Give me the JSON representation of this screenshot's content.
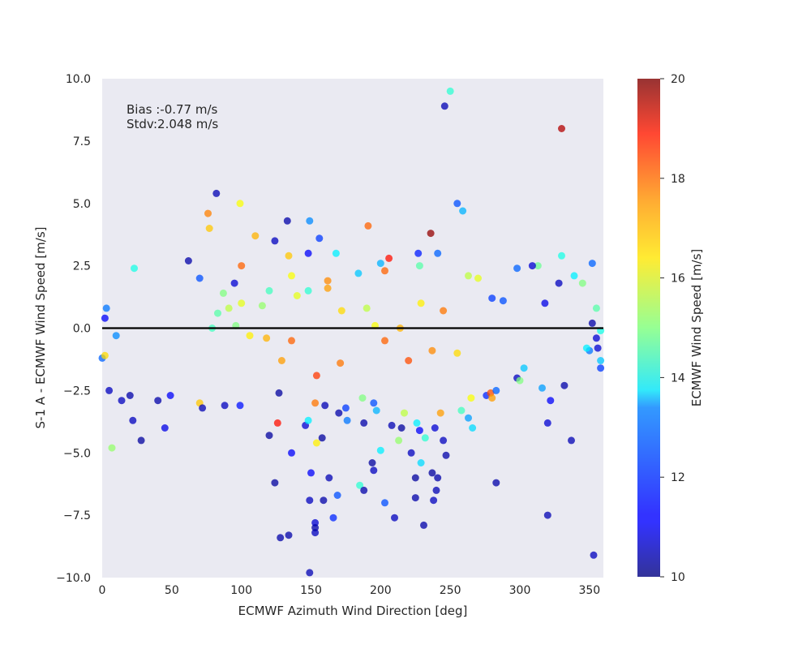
{
  "chart_data": {
    "type": "scatter",
    "xlabel": "ECMWF Azimuth Wind Direction [deg]",
    "ylabel": "S-1 A - ECMWF Wind Speed [m/s]",
    "xlim": [
      0,
      360
    ],
    "ylim": [
      -10,
      10
    ],
    "x_ticks": [
      0,
      50,
      100,
      150,
      200,
      250,
      300,
      350
    ],
    "y_ticks": [
      -10.0,
      -7.5,
      -5.0,
      -2.5,
      0.0,
      2.5,
      5.0,
      7.5,
      10.0
    ],
    "y_tick_labels": [
      "−10.0",
      "−7.5",
      "−5.0",
      "−2.5",
      "0.0",
      "2.5",
      "5.0",
      "7.5",
      "10.0"
    ],
    "x_tick_labels": [
      "0",
      "50",
      "100",
      "150",
      "200",
      "250",
      "300",
      "350"
    ],
    "grid": false,
    "background": "#eaeaf2",
    "reference_line": {
      "y": 0,
      "color": "#000000"
    },
    "annotations": [
      "Bias :-0.77 m/s",
      "Stdv:2.048 m/s"
    ],
    "colorbar": {
      "label": "ECMWF Wind Speed [m/s]",
      "range": [
        10,
        20
      ],
      "ticks": [
        10,
        12,
        14,
        16,
        18,
        20
      ],
      "tick_labels": [
        "10",
        "12",
        "14",
        "16",
        "18",
        "20"
      ],
      "colormap": "jet"
    },
    "points": [
      [
        246,
        8.9,
        10.5
      ],
      [
        250,
        9.5,
        14.2
      ],
      [
        330,
        8.0,
        19.5
      ],
      [
        236,
        3.8,
        19.8
      ],
      [
        82,
        5.4,
        10.5
      ],
      [
        99,
        5.0,
        16.2
      ],
      [
        255,
        5.0,
        12.0
      ],
      [
        259,
        4.7,
        13.0
      ],
      [
        76,
        4.6,
        17.5
      ],
      [
        77,
        4.0,
        16.8
      ],
      [
        133,
        4.3,
        10.4
      ],
      [
        149,
        4.3,
        12.6
      ],
      [
        191,
        4.1,
        17.8
      ],
      [
        110,
        3.7,
        17.0
      ],
      [
        156,
        3.6,
        11.8
      ],
      [
        124,
        3.5,
        10.6
      ],
      [
        148,
        3.0,
        11.2
      ],
      [
        168,
        3.0,
        13.6
      ],
      [
        227,
        3.0,
        11.5
      ],
      [
        241,
        3.0,
        12.2
      ],
      [
        330,
        2.9,
        14.0
      ],
      [
        352,
        2.6,
        12.2
      ],
      [
        62,
        2.7,
        10.4
      ],
      [
        23,
        2.4,
        14.0
      ],
      [
        100,
        2.5,
        17.8
      ],
      [
        134,
        2.9,
        16.8
      ],
      [
        200,
        2.6,
        13.0
      ],
      [
        206,
        2.8,
        18.6
      ],
      [
        313,
        2.5,
        14.8
      ],
      [
        298,
        2.4,
        12.2
      ],
      [
        339,
        2.1,
        13.6
      ],
      [
        345,
        1.8,
        15.0
      ],
      [
        263,
        2.1,
        15.6
      ],
      [
        228,
        2.5,
        14.6
      ],
      [
        203,
        2.3,
        17.8
      ],
      [
        184,
        2.2,
        13.2
      ],
      [
        136,
        2.1,
        16.2
      ],
      [
        162,
        1.6,
        17.2
      ],
      [
        148,
        1.5,
        14.2
      ],
      [
        120,
        1.5,
        14.4
      ],
      [
        95,
        1.8,
        10.8
      ],
      [
        87,
        1.4,
        15.0
      ],
      [
        70,
        2.0,
        12.0
      ],
      [
        280,
        1.2,
        11.8
      ],
      [
        288,
        1.1,
        12.0
      ],
      [
        318,
        1.0,
        11.0
      ],
      [
        328,
        1.8,
        10.6
      ],
      [
        309,
        2.5,
        10.8
      ],
      [
        355,
        0.8,
        14.6
      ],
      [
        3,
        0.8,
        12.4
      ],
      [
        2,
        0.4,
        11.2
      ],
      [
        10,
        -0.3,
        12.6
      ],
      [
        0,
        -1.2,
        12.2
      ],
      [
        2,
        -1.1,
        16.6
      ],
      [
        5,
        -2.5,
        10.6
      ],
      [
        7,
        -4.8,
        15.2
      ],
      [
        20,
        -2.7,
        10.4
      ],
      [
        22,
        -3.7,
        10.6
      ],
      [
        28,
        -4.5,
        10.3
      ],
      [
        14,
        -2.9,
        10.6
      ],
      [
        45,
        -4.0,
        11.0
      ],
      [
        49,
        -2.7,
        11.2
      ],
      [
        40,
        -2.9,
        10.4
      ],
      [
        70,
        -3.0,
        16.8
      ],
      [
        72,
        -3.2,
        10.5
      ],
      [
        88,
        -3.1,
        10.6
      ],
      [
        99,
        -3.1,
        11.4
      ],
      [
        127,
        -2.6,
        10.3
      ],
      [
        120,
        -4.3,
        10.3
      ],
      [
        124,
        -6.2,
        10.3
      ],
      [
        128,
        -8.4,
        10.4
      ],
      [
        134,
        -8.3,
        10.4
      ],
      [
        149,
        -9.8,
        10.5
      ],
      [
        153,
        -8.2,
        10.6
      ],
      [
        153,
        -7.8,
        10.8
      ],
      [
        153,
        -8.0,
        10.4
      ],
      [
        149,
        -6.9,
        10.6
      ],
      [
        150,
        -5.8,
        11.2
      ],
      [
        159,
        -6.9,
        10.4
      ],
      [
        166,
        -7.6,
        11.6
      ],
      [
        169,
        -6.7,
        12.0
      ],
      [
        163,
        -6.0,
        10.5
      ],
      [
        158,
        -4.4,
        10.3
      ],
      [
        146,
        -3.9,
        10.8
      ],
      [
        136,
        -5.0,
        11.2
      ],
      [
        148,
        -3.7,
        13.6
      ],
      [
        154,
        -4.6,
        16.4
      ],
      [
        185,
        -6.3,
        14.2
      ],
      [
        188,
        -6.5,
        10.4
      ],
      [
        195,
        -5.7,
        10.6
      ],
      [
        194,
        -5.4,
        10.3
      ],
      [
        200,
        -4.9,
        13.6
      ],
      [
        203,
        -7.0,
        12.0
      ],
      [
        210,
        -7.6,
        10.6
      ],
      [
        222,
        -5.0,
        10.6
      ],
      [
        229,
        -5.4,
        13.4
      ],
      [
        231,
        -7.9,
        10.4
      ],
      [
        225,
        -6.0,
        10.3
      ],
      [
        225,
        -6.8,
        10.4
      ],
      [
        238,
        -6.9,
        10.6
      ],
      [
        240,
        -6.5,
        10.5
      ],
      [
        241,
        -6.0,
        10.4
      ],
      [
        237,
        -5.8,
        10.3
      ],
      [
        247,
        -5.1,
        10.4
      ],
      [
        245,
        -4.5,
        10.6
      ],
      [
        228,
        -4.1,
        11.2
      ],
      [
        232,
        -4.4,
        14.2
      ],
      [
        213,
        -4.5,
        15.2
      ],
      [
        215,
        -4.0,
        10.3
      ],
      [
        208,
        -3.9,
        10.5
      ],
      [
        188,
        -3.8,
        10.4
      ],
      [
        176,
        -3.7,
        12.4
      ],
      [
        175,
        -3.2,
        11.8
      ],
      [
        170,
        -3.4,
        10.4
      ],
      [
        160,
        -3.1,
        10.5
      ],
      [
        153,
        -3.0,
        17.6
      ],
      [
        154,
        -1.9,
        18.2
      ],
      [
        187,
        -2.8,
        15.0
      ],
      [
        195,
        -3.0,
        12.0
      ],
      [
        197,
        -3.3,
        13.0
      ],
      [
        217,
        -3.4,
        15.6
      ],
      [
        226,
        -3.8,
        13.6
      ],
      [
        239,
        -4.0,
        10.8
      ],
      [
        243,
        -3.4,
        17.2
      ],
      [
        258,
        -3.3,
        14.4
      ],
      [
        263,
        -3.6,
        12.8
      ],
      [
        266,
        -4.0,
        13.4
      ],
      [
        265,
        -2.8,
        16.2
      ],
      [
        276,
        -2.7,
        11.6
      ],
      [
        279,
        -2.6,
        18.0
      ],
      [
        280,
        -2.8,
        17.2
      ],
      [
        283,
        -2.5,
        12.2
      ],
      [
        283,
        -6.2,
        10.4
      ],
      [
        298,
        -2.0,
        10.6
      ],
      [
        300,
        -2.1,
        15.0
      ],
      [
        303,
        -1.6,
        13.2
      ],
      [
        316,
        -2.4,
        12.8
      ],
      [
        322,
        -2.9,
        11.2
      ],
      [
        320,
        -3.8,
        10.8
      ],
      [
        320,
        -7.5,
        10.5
      ],
      [
        332,
        -2.3,
        10.4
      ],
      [
        337,
        -4.5,
        10.5
      ],
      [
        353,
        -9.1,
        10.6
      ],
      [
        358,
        -1.6,
        11.8
      ],
      [
        358,
        -1.3,
        13.2
      ],
      [
        356,
        -0.8,
        10.8
      ],
      [
        350,
        -0.9,
        12.4
      ],
      [
        348,
        -0.8,
        13.6
      ],
      [
        355,
        -0.4,
        10.8
      ],
      [
        352,
        0.2,
        10.4
      ],
      [
        358,
        -0.1,
        14.0
      ],
      [
        126,
        -3.8,
        18.6
      ],
      [
        171,
        -1.4,
        17.6
      ],
      [
        118,
        -0.4,
        17.0
      ],
      [
        136,
        -0.5,
        17.8
      ],
      [
        129,
        -1.3,
        17.2
      ],
      [
        106,
        -0.3,
        16.4
      ],
      [
        220,
        -1.3,
        18.0
      ],
      [
        237,
        -0.9,
        17.4
      ],
      [
        203,
        -0.5,
        17.8
      ],
      [
        245,
        0.7,
        17.6
      ],
      [
        255,
        -1.0,
        16.6
      ],
      [
        270,
        2.0,
        16.0
      ],
      [
        162,
        1.9,
        17.4
      ],
      [
        172,
        0.7,
        16.6
      ],
      [
        190,
        0.8,
        15.6
      ],
      [
        196,
        0.1,
        16.2
      ],
      [
        214,
        0.0,
        17.0
      ],
      [
        229,
        1.0,
        16.4
      ],
      [
        140,
        1.3,
        16.0
      ],
      [
        115,
        0.9,
        15.2
      ],
      [
        100,
        1.0,
        16.0
      ],
      [
        91,
        0.8,
        15.6
      ],
      [
        83,
        0.6,
        14.6
      ],
      [
        96,
        0.1,
        15.0
      ],
      [
        79,
        0.0,
        14.4
      ]
    ]
  }
}
